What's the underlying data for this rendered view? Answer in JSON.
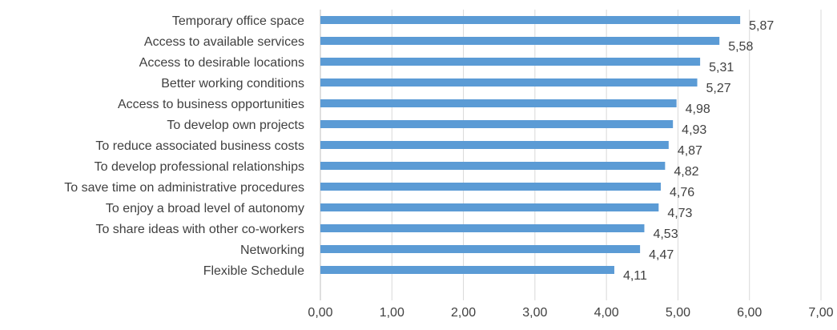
{
  "chart_data": {
    "type": "bar",
    "orientation": "horizontal",
    "categories": [
      "Temporary office space",
      "Access to available services",
      "Access to desirable locations",
      "Better working conditions",
      "Access to business opportunities",
      "To develop own projects",
      "To reduce associated business costs",
      "To develop professional relationships",
      "To save time on administrative procedures",
      "To enjoy a broad level of autonomy",
      "To share ideas with other co-workers",
      "Networking",
      "Flexible Schedule"
    ],
    "values": [
      5.87,
      5.58,
      5.31,
      5.27,
      4.98,
      4.93,
      4.87,
      4.82,
      4.76,
      4.73,
      4.53,
      4.47,
      4.11
    ],
    "value_labels": [
      "5,87",
      "5,58",
      "5,31",
      "5,27",
      "4,98",
      "4,93",
      "4,87",
      "4,82",
      "4,76",
      "4,73",
      "4,53",
      "4,47",
      "4,11"
    ],
    "xticks": [
      0,
      1,
      2,
      3,
      4,
      5,
      6,
      7
    ],
    "xtick_labels": [
      "0,00",
      "1,00",
      "2,00",
      "3,00",
      "4,00",
      "5,00",
      "6,00",
      "7,00"
    ],
    "xlim": [
      0,
      7
    ],
    "grid": "vertical",
    "legend": "none",
    "bar_color": "#5b9bd5",
    "title": "",
    "xlabel": "",
    "ylabel": ""
  }
}
